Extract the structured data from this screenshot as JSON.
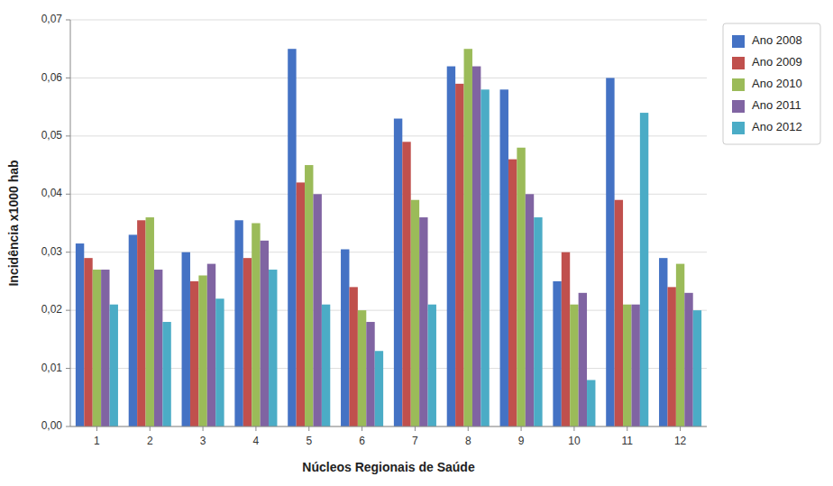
{
  "chart_data": {
    "type": "bar",
    "xlabel": "Núcleos Regionais de Saúde",
    "ylabel": "Incidência x1000 hab",
    "categories": [
      "1",
      "2",
      "3",
      "4",
      "5",
      "6",
      "7",
      "8",
      "9",
      "10",
      "11",
      "12"
    ],
    "series": [
      {
        "name": "Ano 2008",
        "color": "#4472C4",
        "values": [
          0.0315,
          0.033,
          0.03,
          0.0355,
          0.065,
          0.0305,
          0.053,
          0.062,
          0.058,
          0.025,
          0.06,
          0.029
        ]
      },
      {
        "name": "Ano 2009",
        "color": "#C0504D",
        "values": [
          0.029,
          0.0355,
          0.025,
          0.029,
          0.042,
          0.024,
          0.049,
          0.059,
          0.046,
          0.03,
          0.039,
          0.024
        ]
      },
      {
        "name": "Ano 2010",
        "color": "#9BBB59",
        "values": [
          0.027,
          0.036,
          0.026,
          0.035,
          0.045,
          0.02,
          0.039,
          0.065,
          0.048,
          0.021,
          0.021,
          0.028
        ]
      },
      {
        "name": "Ano 2011",
        "color": "#8064A2",
        "values": [
          0.027,
          0.027,
          0.028,
          0.032,
          0.04,
          0.018,
          0.036,
          0.062,
          0.04,
          0.023,
          0.021,
          0.023
        ]
      },
      {
        "name": "Ano 2012",
        "color": "#4BACC6",
        "values": [
          0.021,
          0.018,
          0.022,
          0.027,
          0.021,
          0.013,
          0.021,
          0.058,
          0.036,
          0.008,
          0.054,
          0.02
        ]
      }
    ],
    "ylim": [
      0.0,
      0.07
    ],
    "yticks": [
      {
        "value": 0.0,
        "label": "0,00"
      },
      {
        "value": 0.01,
        "label": "0,01"
      },
      {
        "value": 0.02,
        "label": "0,02"
      },
      {
        "value": 0.03,
        "label": "0,03"
      },
      {
        "value": 0.04,
        "label": "0,04"
      },
      {
        "value": 0.05,
        "label": "0,05"
      },
      {
        "value": 0.06,
        "label": "0,06"
      },
      {
        "value": 0.07,
        "label": "0,07"
      }
    ],
    "grid": true,
    "legend": "right"
  }
}
